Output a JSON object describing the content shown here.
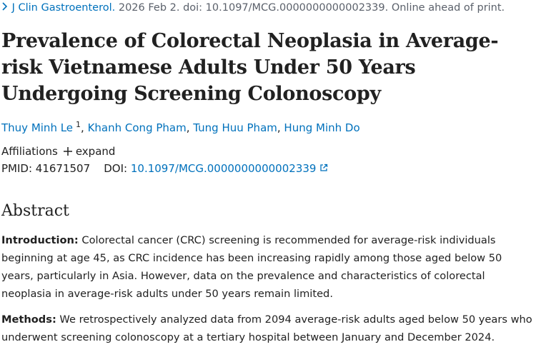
{
  "citation": {
    "journal": "J Clin Gastroenterol.",
    "details": "2026 Feb 2. doi: 10.1097/MCG.0000000000002339. Online ahead of print."
  },
  "title": "Prevalence of Colorectal Neoplasia in Average-risk Vietnamese Adults Under 50 Years Undergoing Screening Colonoscopy",
  "authors": [
    {
      "name": "Thuy Minh Le",
      "affiliation": "1"
    },
    {
      "name": "Khanh Cong Pham"
    },
    {
      "name": "Tung Huu Pham"
    },
    {
      "name": "Hung Minh Do"
    }
  ],
  "affiliations": {
    "label": "Affiliations",
    "toggle": "expand"
  },
  "identifiers": {
    "pmid_label": "PMID:",
    "pmid": "41671507",
    "doi_label": "DOI:",
    "doi": "10.1097/MCG.0000000000002339"
  },
  "abstract": {
    "heading": "Abstract",
    "sections": [
      {
        "label": "Introduction:",
        "text": "Colorectal cancer (CRC) screening is recommended for average-risk individuals beginning at age 45, as CRC incidence has been increasing rapidly among those aged below 50 years, particularly in Asia. However, data on the prevalence and characteristics of colorectal neoplasia in average-risk adults under 50 years remain limited."
      },
      {
        "label": "Methods:",
        "text": "We retrospectively analyzed data from 2094 average-risk adults aged below 50 years who underwent screening colonoscopy at a tertiary hospital between January and December 2024."
      }
    ]
  }
}
